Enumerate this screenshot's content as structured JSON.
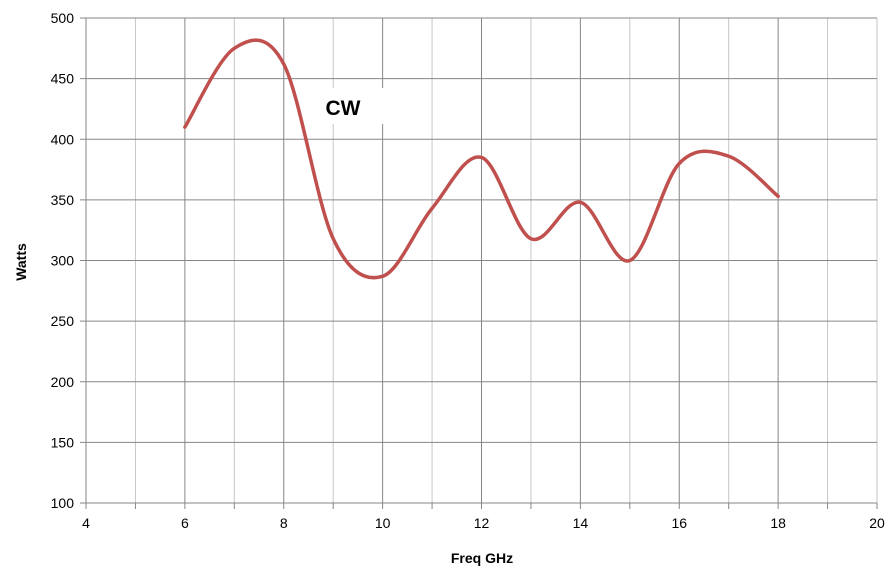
{
  "chart_data": {
    "type": "line",
    "title": "",
    "annotation": "CW",
    "xlabel": "Freq GHz",
    "ylabel": "Watts",
    "xlim": [
      4,
      20
    ],
    "ylim": [
      100,
      500
    ],
    "x_ticks": [
      4,
      6,
      8,
      10,
      12,
      14,
      16,
      18,
      20
    ],
    "y_ticks": [
      100,
      150,
      200,
      250,
      300,
      350,
      400,
      450,
      500
    ],
    "grid": true,
    "legend": "none",
    "series": [
      {
        "color": "#c0504d",
        "smooth": true,
        "points": [
          {
            "x": 6,
            "y": 410
          },
          {
            "x": 7,
            "y": 475
          },
          {
            "x": 8,
            "y": 462
          },
          {
            "x": 9,
            "y": 318
          },
          {
            "x": 10,
            "y": 287
          },
          {
            "x": 11,
            "y": 343
          },
          {
            "x": 12,
            "y": 385
          },
          {
            "x": 13,
            "y": 318
          },
          {
            "x": 14,
            "y": 348
          },
          {
            "x": 15,
            "y": 300
          },
          {
            "x": 16,
            "y": 380
          },
          {
            "x": 17,
            "y": 386
          },
          {
            "x": 18,
            "y": 353
          }
        ]
      }
    ]
  }
}
